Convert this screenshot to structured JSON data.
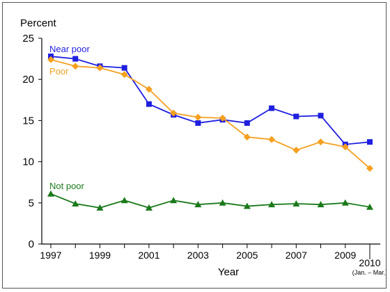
{
  "chart_data": {
    "type": "line",
    "title": "",
    "ylabel": "Percent",
    "xlabel": "Year",
    "ylim": [
      0,
      25
    ],
    "yticks": [
      0,
      5,
      10,
      15,
      20,
      25
    ],
    "x": [
      1997,
      1998,
      1999,
      2000,
      2001,
      2002,
      2003,
      2004,
      2005,
      2006,
      2007,
      2008,
      2009,
      2010
    ],
    "xtick_labels": [
      "1997",
      "1999",
      "2001",
      "2003",
      "2005",
      "2007",
      "2009",
      "2010"
    ],
    "last_tick_note": "(Jan. – Mar.)",
    "grid": false,
    "legend": "inline labels",
    "series": [
      {
        "name": "Near poor",
        "color": "#1f1fe0",
        "marker": "square",
        "values": [
          22.8,
          22.5,
          21.6,
          21.4,
          17.0,
          15.7,
          14.7,
          15.1,
          14.7,
          16.5,
          15.5,
          15.6,
          12.1,
          12.4
        ]
      },
      {
        "name": "Poor",
        "color": "#f5a020",
        "marker": "diamond",
        "values": [
          22.4,
          21.6,
          21.4,
          20.6,
          18.8,
          15.9,
          15.4,
          15.3,
          13.0,
          12.7,
          11.4,
          12.4,
          11.8,
          9.2
        ]
      },
      {
        "name": "Not poor",
        "color": "#1a7a1a",
        "marker": "triangle",
        "values": [
          6.1,
          4.9,
          4.4,
          5.3,
          4.4,
          5.3,
          4.8,
          5.0,
          4.6,
          4.8,
          4.9,
          4.8,
          5.0,
          4.5
        ]
      }
    ]
  }
}
